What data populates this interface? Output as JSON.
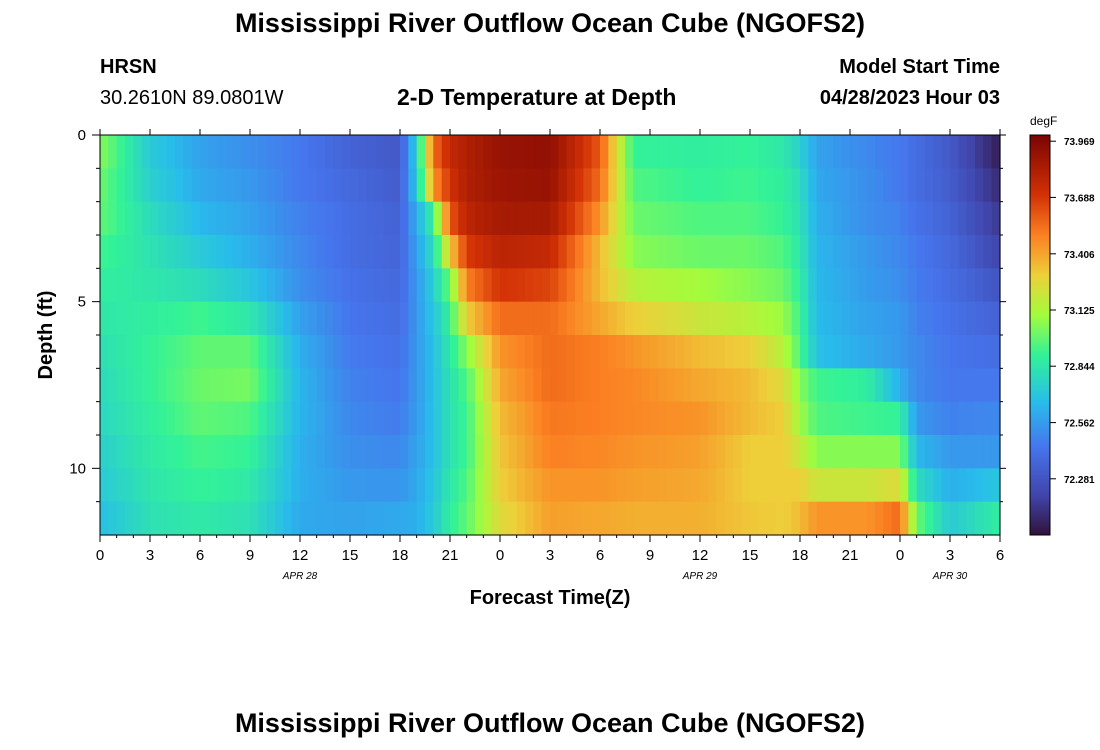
{
  "page": {
    "title_top": "Mississippi River Outflow Ocean Cube (NGOFS2)",
    "title_bottom": "Mississippi River Outflow Ocean Cube (NGOFS2)",
    "station_name": "HRSN",
    "station_coords": "30.2610N  89.0801W",
    "subtitle": "2-D Temperature at Depth",
    "model_start_label": "Model Start Time",
    "model_start_value": "04/28/2023 Hour 03"
  },
  "chart_data": {
    "type": "heatmap",
    "title": "2-D Temperature at Depth",
    "xlabel": "Forecast Time(Z)",
    "ylabel": "Depth (ft)",
    "x_tick_labels": [
      "0",
      "3",
      "6",
      "9",
      "12",
      "15",
      "18",
      "21",
      "0",
      "3",
      "6",
      "9",
      "12",
      "15",
      "18",
      "21",
      "0",
      "3",
      "6"
    ],
    "date_labels": [
      {
        "label": "APR 28",
        "hour": 12
      },
      {
        "label": "APR 29",
        "hour": 36
      },
      {
        "label": "APR 30",
        "hour": 51
      }
    ],
    "x_range_hours": [
      0,
      54
    ],
    "y_ticks": [
      0,
      5,
      10
    ],
    "y_range_ft": [
      0,
      12
    ],
    "colorbar": {
      "unit": "degF",
      "ticks": [
        73.969,
        73.688,
        73.406,
        73.125,
        72.844,
        72.562,
        72.281
      ],
      "range": [
        72.0,
        74.0
      ]
    },
    "colors": {
      "low": "#30123b",
      "mid_blue": "#3a5fd0",
      "cyan": "#28bceb",
      "green": "#a4fc3c",
      "yellow": "#fbb938",
      "high": "#7a0403"
    },
    "columns": [
      {
        "hour": 0,
        "depth": [
          73.05,
          73.0,
          72.98,
          72.92,
          72.88,
          72.85,
          72.82,
          72.8,
          72.78,
          72.75,
          72.72,
          72.68
        ]
      },
      {
        "hour": 3,
        "depth": [
          72.72,
          72.75,
          72.8,
          72.83,
          72.85,
          72.88,
          72.9,
          72.9,
          72.88,
          72.86,
          72.84,
          72.82
        ]
      },
      {
        "hour": 6,
        "depth": [
          72.58,
          72.6,
          72.65,
          72.72,
          72.8,
          72.92,
          72.98,
          73.0,
          72.98,
          72.93,
          72.9,
          72.86
        ]
      },
      {
        "hour": 9,
        "depth": [
          72.52,
          72.55,
          72.58,
          72.62,
          72.7,
          72.85,
          72.98,
          73.02,
          72.95,
          72.9,
          72.86,
          72.82
        ]
      },
      {
        "hour": 12,
        "depth": [
          72.45,
          72.45,
          72.48,
          72.5,
          72.52,
          72.58,
          72.62,
          72.64,
          72.64,
          72.62,
          72.62,
          72.6
        ]
      },
      {
        "hour": 15,
        "depth": [
          72.35,
          72.38,
          72.4,
          72.4,
          72.42,
          72.44,
          72.46,
          72.48,
          72.5,
          72.52,
          72.55,
          72.58
        ]
      },
      {
        "hour": 18,
        "depth": [
          72.3,
          72.32,
          72.35,
          72.36,
          72.38,
          72.4,
          72.42,
          72.44,
          72.46,
          72.5,
          72.54,
          72.6
        ]
      },
      {
        "hour": 19,
        "depth": [
          72.75,
          72.72,
          72.62,
          72.58,
          72.55,
          72.55,
          72.55,
          72.55,
          72.56,
          72.58,
          72.6,
          72.62
        ]
      },
      {
        "hour": 20,
        "depth": [
          73.55,
          73.45,
          72.9,
          72.8,
          72.74,
          72.7,
          72.68,
          72.68,
          72.68,
          72.68,
          72.7,
          72.72
        ]
      },
      {
        "hour": 21,
        "depth": [
          73.75,
          73.7,
          73.6,
          73.3,
          73.0,
          72.9,
          72.85,
          72.82,
          72.82,
          72.82,
          72.85,
          72.88
        ]
      },
      {
        "hour": 22,
        "depth": [
          73.82,
          73.82,
          73.78,
          73.68,
          73.5,
          73.3,
          73.05,
          72.95,
          72.92,
          72.92,
          72.95,
          72.98
        ]
      },
      {
        "hour": 24,
        "depth": [
          73.9,
          73.88,
          73.85,
          73.78,
          73.7,
          73.55,
          73.45,
          73.4,
          73.35,
          73.32,
          73.3,
          73.25
        ]
      },
      {
        "hour": 27,
        "depth": [
          73.92,
          73.9,
          73.85,
          73.75,
          73.65,
          73.55,
          73.55,
          73.55,
          73.52,
          73.5,
          73.45,
          73.42
        ]
      },
      {
        "hour": 30,
        "depth": [
          73.6,
          73.55,
          73.45,
          73.35,
          73.35,
          73.4,
          73.5,
          73.5,
          73.5,
          73.48,
          73.45,
          73.4
        ]
      },
      {
        "hour": 32,
        "depth": [
          72.9,
          72.95,
          73.0,
          73.05,
          73.15,
          73.3,
          73.45,
          73.48,
          73.48,
          73.45,
          73.42,
          73.38
        ]
      },
      {
        "hour": 36,
        "depth": [
          72.88,
          72.9,
          72.95,
          73.0,
          73.1,
          73.2,
          73.35,
          73.4,
          73.45,
          73.42,
          73.4,
          73.38
        ]
      },
      {
        "hour": 39,
        "depth": [
          72.9,
          72.92,
          72.95,
          73.0,
          73.05,
          73.15,
          73.3,
          73.35,
          73.35,
          73.3,
          73.3,
          73.32
        ]
      },
      {
        "hour": 41,
        "depth": [
          72.85,
          72.88,
          72.9,
          72.95,
          73.0,
          73.08,
          73.15,
          73.25,
          73.3,
          73.3,
          73.3,
          73.3
        ]
      },
      {
        "hour": 42,
        "depth": [
          72.75,
          72.8,
          72.82,
          72.85,
          72.88,
          72.92,
          72.95,
          73.05,
          73.1,
          73.2,
          73.3,
          73.35
        ]
      },
      {
        "hour": 43,
        "depth": [
          72.58,
          72.6,
          72.62,
          72.64,
          72.65,
          72.66,
          72.68,
          72.92,
          72.95,
          73.05,
          73.2,
          73.45
        ]
      },
      {
        "hour": 46,
        "depth": [
          72.5,
          72.52,
          72.52,
          72.55,
          72.56,
          72.58,
          72.6,
          72.88,
          72.92,
          73.05,
          73.2,
          73.45
        ]
      },
      {
        "hour": 48,
        "depth": [
          72.45,
          72.45,
          72.48,
          72.5,
          72.52,
          72.55,
          72.55,
          72.62,
          72.9,
          73.05,
          73.25,
          73.55
        ]
      },
      {
        "hour": 49,
        "depth": [
          72.4,
          72.4,
          72.42,
          72.45,
          72.46,
          72.48,
          72.5,
          72.5,
          72.55,
          72.65,
          72.8,
          73.0
        ]
      },
      {
        "hour": 51,
        "depth": [
          72.3,
          72.32,
          72.35,
          72.38,
          72.4,
          72.42,
          72.44,
          72.45,
          72.48,
          72.55,
          72.62,
          72.72
        ]
      },
      {
        "hour": 54,
        "depth": [
          72.05,
          72.1,
          72.15,
          72.2,
          72.28,
          72.35,
          72.4,
          72.45,
          72.5,
          72.55,
          72.7,
          72.88
        ]
      }
    ]
  }
}
